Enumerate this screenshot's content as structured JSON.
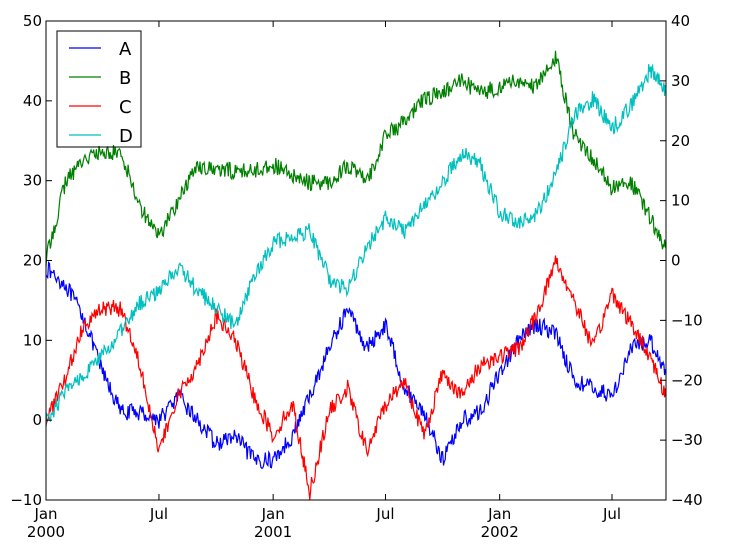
{
  "chart_data": {
    "type": "line",
    "title": "",
    "xlabel": "",
    "ylabel": "",
    "x_axis": {
      "range": [
        "2000-01-01",
        "2002-09-26"
      ],
      "ticks": [
        {
          "date": "2000-01-01",
          "label": "Jan",
          "sublabel": "2000"
        },
        {
          "date": "2000-07-01",
          "label": "Jul",
          "sublabel": ""
        },
        {
          "date": "2001-01-01",
          "label": "Jan",
          "sublabel": "2001"
        },
        {
          "date": "2001-07-01",
          "label": "Jul",
          "sublabel": ""
        },
        {
          "date": "2002-01-01",
          "label": "Jan",
          "sublabel": "2002"
        },
        {
          "date": "2002-07-01",
          "label": "Jul",
          "sublabel": ""
        }
      ]
    },
    "y_left": {
      "range": [
        -10,
        50
      ],
      "ticks": [
        -10,
        0,
        10,
        20,
        30,
        40,
        50
      ]
    },
    "y_right": {
      "range": [
        -40,
        40
      ],
      "ticks": [
        -40,
        -30,
        -20,
        -10,
        0,
        10,
        20,
        30,
        40
      ]
    },
    "grid": false,
    "legend": {
      "placement": "top-left"
    },
    "series": [
      {
        "name": "A",
        "axis": "left",
        "color": "#0000ff",
        "points": [
          [
            "2000-01-01",
            19
          ],
          [
            "2000-02-01",
            17
          ],
          [
            "2000-03-01",
            13
          ],
          [
            "2000-04-01",
            6
          ],
          [
            "2000-05-01",
            1
          ],
          [
            "2000-06-01",
            1
          ],
          [
            "2000-07-01",
            0
          ],
          [
            "2000-08-01",
            3
          ],
          [
            "2000-09-01",
            0
          ],
          [
            "2000-10-01",
            -3
          ],
          [
            "2000-11-01",
            -2
          ],
          [
            "2000-12-01",
            -5
          ],
          [
            "2001-01-01",
            -5
          ],
          [
            "2001-02-01",
            -2
          ],
          [
            "2001-03-01",
            3
          ],
          [
            "2001-04-01",
            9
          ],
          [
            "2001-05-01",
            14
          ],
          [
            "2001-06-01",
            9
          ],
          [
            "2001-07-01",
            12
          ],
          [
            "2001-08-01",
            4
          ],
          [
            "2001-09-01",
            1
          ],
          [
            "2001-10-01",
            -5
          ],
          [
            "2001-11-01",
            0
          ],
          [
            "2001-12-01",
            1
          ],
          [
            "2002-01-01",
            6
          ],
          [
            "2002-02-01",
            10
          ],
          [
            "2002-03-01",
            12
          ],
          [
            "2002-04-01",
            11
          ],
          [
            "2002-05-01",
            5
          ],
          [
            "2002-06-01",
            4
          ],
          [
            "2002-07-01",
            3
          ],
          [
            "2002-08-01",
            9
          ],
          [
            "2002-09-01",
            10
          ],
          [
            "2002-09-26",
            6
          ]
        ]
      },
      {
        "name": "B",
        "axis": "right",
        "color": "#008000",
        "points": [
          [
            "2000-01-01",
            0
          ],
          [
            "2000-02-01",
            13
          ],
          [
            "2000-03-01",
            17
          ],
          [
            "2000-04-01",
            18
          ],
          [
            "2000-05-01",
            18
          ],
          [
            "2000-06-01",
            9
          ],
          [
            "2000-07-01",
            4
          ],
          [
            "2000-08-01",
            10
          ],
          [
            "2000-09-01",
            16
          ],
          [
            "2000-10-01",
            15
          ],
          [
            "2000-11-01",
            15
          ],
          [
            "2000-12-01",
            15
          ],
          [
            "2001-01-01",
            16
          ],
          [
            "2001-02-01",
            14
          ],
          [
            "2001-03-01",
            13
          ],
          [
            "2001-04-01",
            13
          ],
          [
            "2001-05-01",
            16
          ],
          [
            "2001-06-01",
            13
          ],
          [
            "2001-07-01",
            21
          ],
          [
            "2001-08-01",
            23
          ],
          [
            "2001-09-01",
            27
          ],
          [
            "2001-10-01",
            28
          ],
          [
            "2001-11-01",
            30
          ],
          [
            "2001-12-01",
            28
          ],
          [
            "2002-01-01",
            29
          ],
          [
            "2002-02-01",
            30
          ],
          [
            "2002-03-01",
            29
          ],
          [
            "2002-04-01",
            34
          ],
          [
            "2002-05-01",
            21
          ],
          [
            "2002-06-01",
            17
          ],
          [
            "2002-07-01",
            12
          ],
          [
            "2002-08-01",
            13
          ],
          [
            "2002-09-01",
            7
          ],
          [
            "2002-09-26",
            2
          ]
        ]
      },
      {
        "name": "C",
        "axis": "left",
        "color": "#ff0000",
        "points": [
          [
            "2000-01-01",
            0
          ],
          [
            "2000-02-01",
            5
          ],
          [
            "2000-03-01",
            12
          ],
          [
            "2000-04-01",
            14
          ],
          [
            "2000-05-01",
            14
          ],
          [
            "2000-06-01",
            7
          ],
          [
            "2000-07-01",
            -4
          ],
          [
            "2000-08-01",
            3
          ],
          [
            "2000-09-01",
            7
          ],
          [
            "2000-10-01",
            13
          ],
          [
            "2000-11-01",
            10
          ],
          [
            "2000-12-01",
            3
          ],
          [
            "2001-01-01",
            -2
          ],
          [
            "2001-02-01",
            2
          ],
          [
            "2001-03-01",
            -9
          ],
          [
            "2001-04-01",
            1
          ],
          [
            "2001-05-01",
            4
          ],
          [
            "2001-06-01",
            -4
          ],
          [
            "2001-07-01",
            2
          ],
          [
            "2001-08-01",
            5
          ],
          [
            "2001-09-01",
            -2
          ],
          [
            "2001-10-01",
            6
          ],
          [
            "2001-11-01",
            3
          ],
          [
            "2001-12-01",
            7
          ],
          [
            "2002-01-01",
            8
          ],
          [
            "2002-02-01",
            9
          ],
          [
            "2002-03-01",
            13
          ],
          [
            "2002-04-01",
            20
          ],
          [
            "2002-05-01",
            15
          ],
          [
            "2002-06-01",
            9
          ],
          [
            "2002-07-01",
            16
          ],
          [
            "2002-08-01",
            12
          ],
          [
            "2002-09-01",
            8
          ],
          [
            "2002-09-26",
            3
          ]
        ]
      },
      {
        "name": "D",
        "axis": "right",
        "color": "#00bfbf",
        "points": [
          [
            "2000-01-01",
            -27
          ],
          [
            "2000-02-01",
            -22
          ],
          [
            "2000-03-01",
            -19
          ],
          [
            "2000-04-01",
            -16
          ],
          [
            "2000-05-01",
            -12
          ],
          [
            "2000-06-01",
            -7
          ],
          [
            "2000-07-01",
            -5
          ],
          [
            "2000-08-01",
            -1
          ],
          [
            "2000-09-01",
            -5
          ],
          [
            "2000-10-01",
            -8
          ],
          [
            "2000-11-01",
            -11
          ],
          [
            "2000-12-01",
            -3
          ],
          [
            "2001-01-01",
            3
          ],
          [
            "2001-02-01",
            4
          ],
          [
            "2001-03-01",
            5
          ],
          [
            "2001-04-01",
            -3
          ],
          [
            "2001-05-01",
            -5
          ],
          [
            "2001-06-01",
            2
          ],
          [
            "2001-07-01",
            7
          ],
          [
            "2001-08-01",
            5
          ],
          [
            "2001-09-01",
            9
          ],
          [
            "2001-10-01",
            13
          ],
          [
            "2001-11-01",
            18
          ],
          [
            "2001-12-01",
            16
          ],
          [
            "2002-01-01",
            8
          ],
          [
            "2002-02-01",
            6
          ],
          [
            "2002-03-01",
            8
          ],
          [
            "2002-04-01",
            14
          ],
          [
            "2002-05-01",
            24
          ],
          [
            "2002-06-01",
            27
          ],
          [
            "2002-07-01",
            22
          ],
          [
            "2002-08-01",
            26
          ],
          [
            "2002-09-01",
            32
          ],
          [
            "2002-09-26",
            28
          ]
        ]
      }
    ]
  }
}
